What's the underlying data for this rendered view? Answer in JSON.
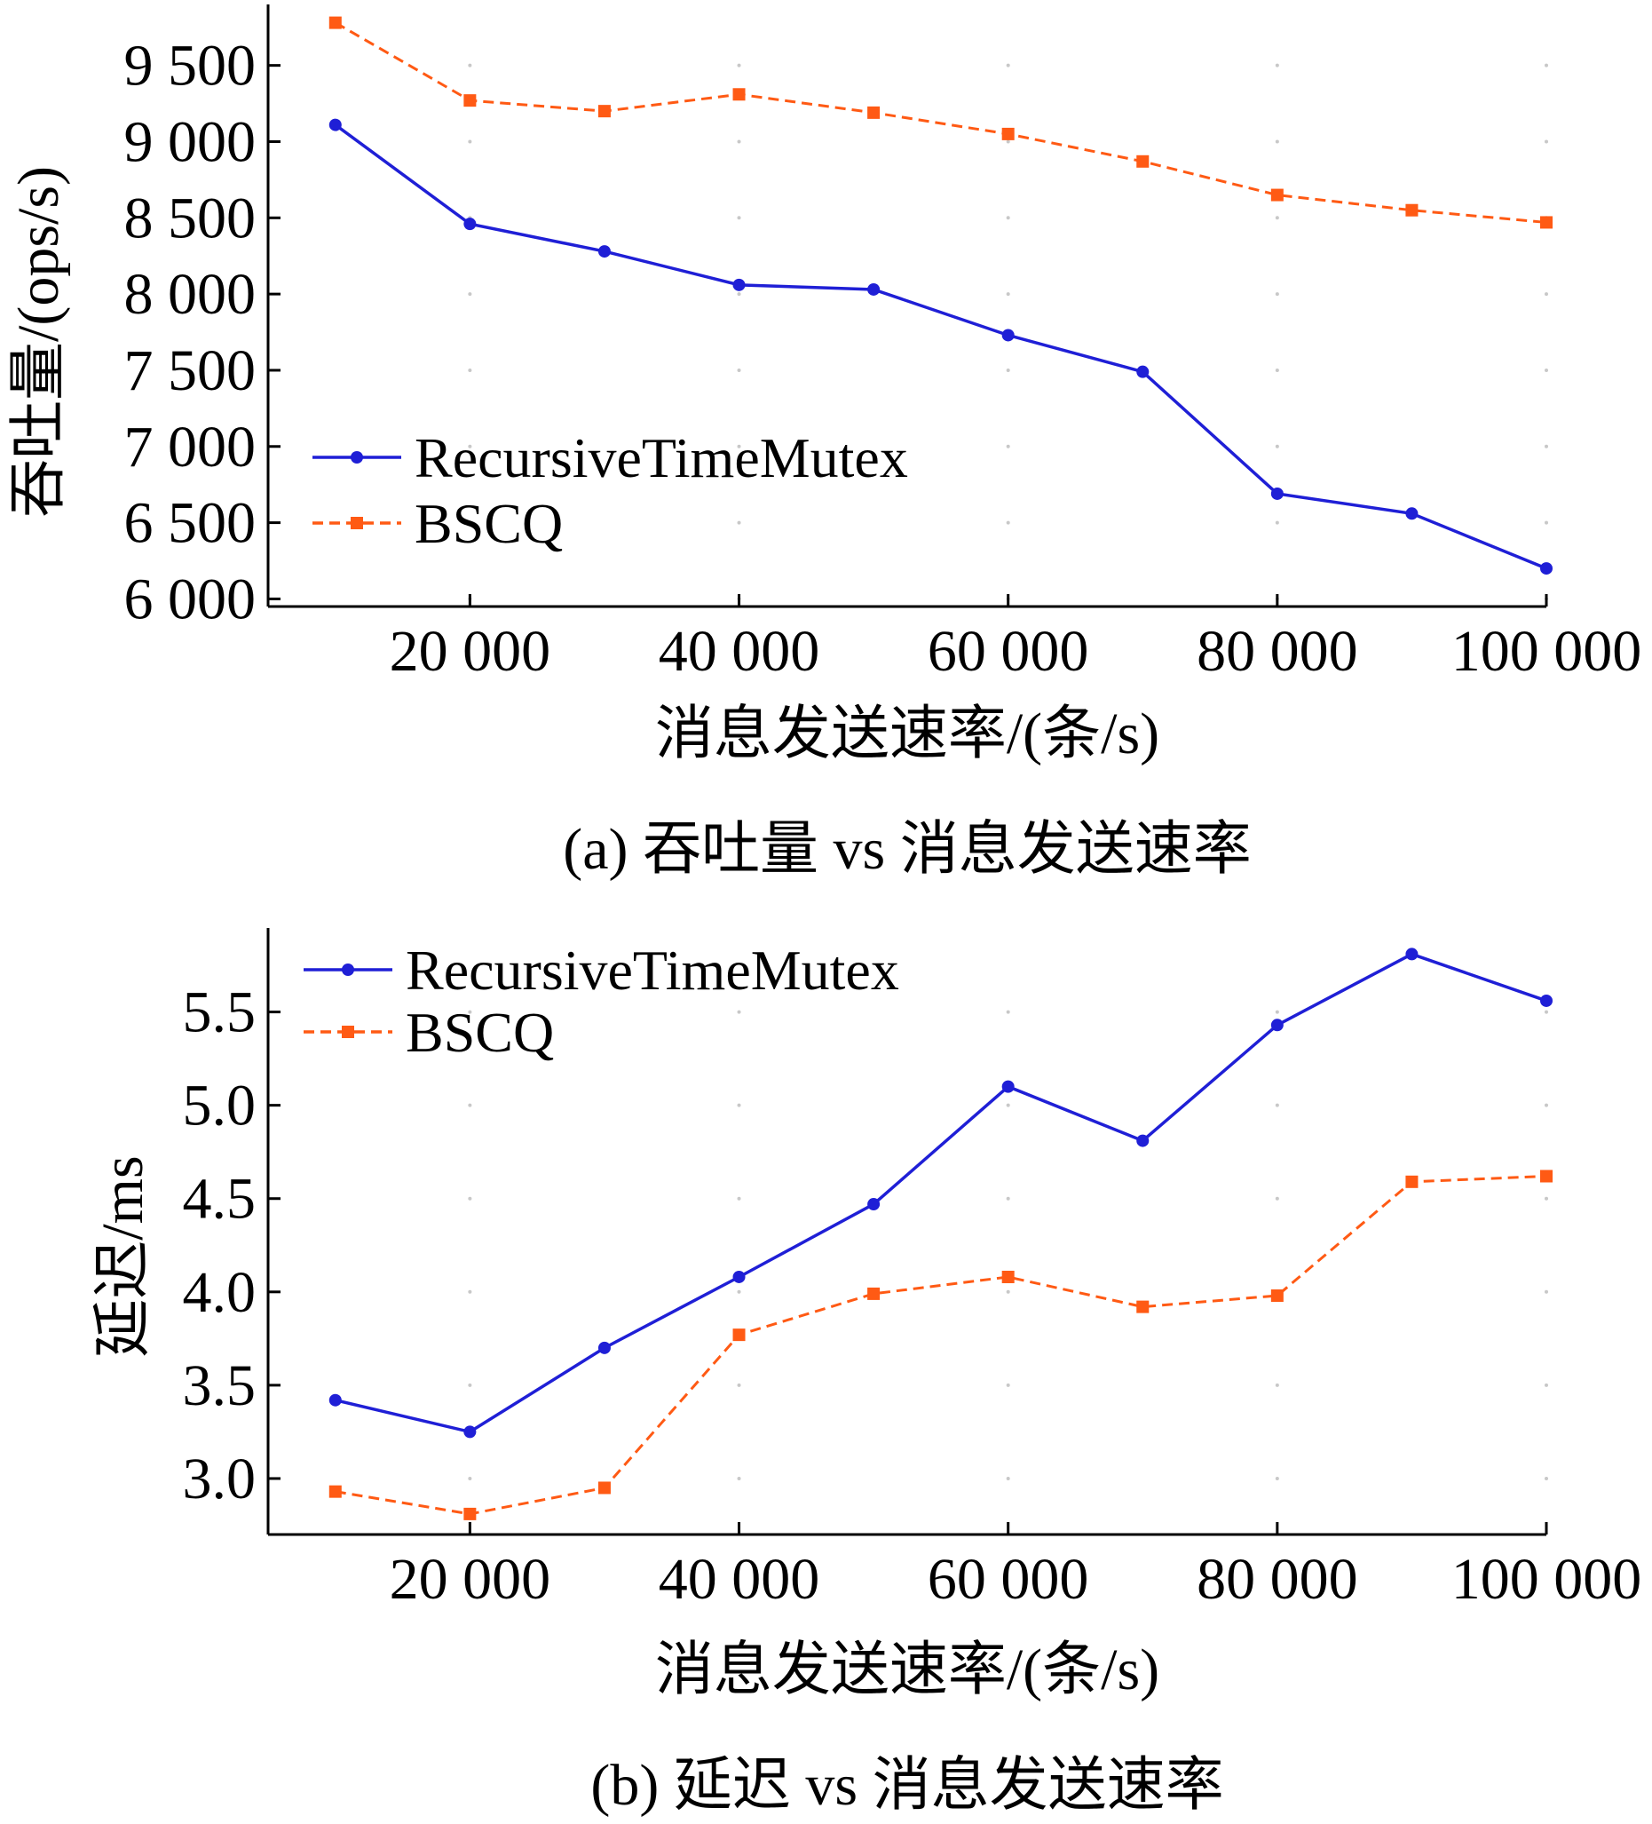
{
  "chart_data": [
    {
      "type": "line",
      "caption": "(a) 吞吐量 vs 消息发送速率",
      "xlabel": "消息发送速率/(条/s)",
      "ylabel": "吞吐量/(ops/s)",
      "x": [
        10000,
        20000,
        30000,
        40000,
        50000,
        60000,
        70000,
        80000,
        90000,
        100000
      ],
      "xticks": [
        20000,
        40000,
        60000,
        80000,
        100000
      ],
      "xtick_labels": [
        "20 000",
        "40 000",
        "60 000",
        "80 000",
        "100 000"
      ],
      "xlim": [
        5000,
        100000
      ],
      "yticks": [
        6000,
        6500,
        7000,
        7500,
        8000,
        8500,
        9000,
        9500
      ],
      "ytick_labels": [
        "6 000",
        "6 500",
        "7 000",
        "7 500",
        "8 000",
        "8 500",
        "9 000",
        "9 500"
      ],
      "ylim": [
        5950,
        9900
      ],
      "legend_position": "center-left",
      "series": [
        {
          "name": "RecursiveTimeMutex",
          "color": "#1f1fd6",
          "marker": "circle",
          "dash": "solid",
          "values": [
            9110,
            8460,
            8280,
            8060,
            8030,
            7730,
            7490,
            6690,
            6560,
            6200
          ]
        },
        {
          "name": "BSCQ",
          "color": "#ff5a14",
          "marker": "square",
          "dash": "dashed",
          "values": [
            9780,
            9270,
            9200,
            9310,
            9190,
            9050,
            8870,
            8650,
            8550,
            8470
          ]
        }
      ]
    },
    {
      "type": "line",
      "caption": "(b) 延迟 vs 消息发送速率",
      "xlabel": "消息发送速率/(条/s)",
      "ylabel": "延迟/ms",
      "x": [
        10000,
        20000,
        30000,
        40000,
        50000,
        60000,
        70000,
        80000,
        90000,
        100000
      ],
      "xticks": [
        20000,
        40000,
        60000,
        80000,
        100000
      ],
      "xtick_labels": [
        "20 000",
        "40 000",
        "60 000",
        "80 000",
        "100 000"
      ],
      "xlim": [
        5000,
        100000
      ],
      "yticks": [
        3.0,
        3.5,
        4.0,
        4.5,
        5.0,
        5.5
      ],
      "ytick_labels": [
        "3.0",
        "3.5",
        "4.0",
        "4.5",
        "5.0",
        "5.5"
      ],
      "ylim": [
        2.7,
        5.95
      ],
      "legend_position": "top-left",
      "series": [
        {
          "name": "RecursiveTimeMutex",
          "color": "#1f1fd6",
          "marker": "circle",
          "dash": "solid",
          "values": [
            3.42,
            3.25,
            3.7,
            4.08,
            4.47,
            5.1,
            4.81,
            5.43,
            5.81,
            5.56
          ]
        },
        {
          "name": "BSCQ",
          "color": "#ff5a14",
          "marker": "square",
          "dash": "dashed",
          "values": [
            2.93,
            2.81,
            2.95,
            3.77,
            3.99,
            4.08,
            3.92,
            3.98,
            4.59,
            4.62
          ]
        }
      ]
    }
  ]
}
